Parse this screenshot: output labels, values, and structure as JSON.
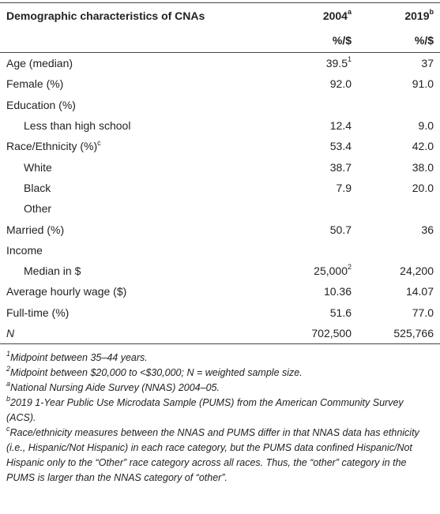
{
  "table": {
    "header": {
      "label": "Demographic characteristics of CNAs",
      "col2004": "2004",
      "col2004_note": "a",
      "col2019": "2019",
      "col2019_note": "b",
      "unit2004": "%/$",
      "unit2019": "%/$"
    },
    "rows": [
      {
        "label": "Age (median)",
        "v2004": "39.5",
        "v2004_note": "1",
        "v2019": "37"
      },
      {
        "label": "Female (%)",
        "v2004": "92.0",
        "v2019": "91.0"
      },
      {
        "label": "Education (%)"
      },
      {
        "label": "Less than high school",
        "v2004": "12.4",
        "v2019": "9.0"
      },
      {
        "label": "Race/Ethnicity (%)",
        "label_note": "c",
        "v2004": "53.4",
        "v2019": "42.0"
      },
      {
        "label": "White",
        "v2004": "38.7",
        "v2019": "38.0"
      },
      {
        "label": "Black",
        "v2004": "7.9",
        "v2019": "20.0"
      },
      {
        "label": "Other"
      },
      {
        "label": "Married (%)",
        "v2004": "50.7",
        "v2019": "36"
      },
      {
        "label": "Income"
      },
      {
        "label": "Median in $",
        "v2004": "25,000",
        "v2004_note": "2",
        "v2019": "24,200"
      },
      {
        "label": "Average hourly wage ($)",
        "v2004": "10.36",
        "v2019": "14.07"
      },
      {
        "label": "Full-time (%)",
        "v2004": "51.6",
        "v2019": "77.0"
      },
      {
        "label": "N",
        "v2004": "702,500",
        "v2019": "525,766"
      }
    ]
  },
  "footnotes": [
    {
      "marker": "1",
      "text": "Midpoint between 35–44 years."
    },
    {
      "marker": "2",
      "text": "Midpoint between $20,000 to <$30,000; N = weighted sample size."
    },
    {
      "marker": "a",
      "text": "National Nursing Aide Survey (NNAS) 2004–05."
    },
    {
      "marker": "b",
      "text": "2019 1-Year Public Use Microdata Sample (PUMS) from the American Community Survey (ACS)."
    },
    {
      "marker": "c",
      "text": "Race/ethnicity measures between the NNAS and PUMS differ in that NNAS data has ethnicity (i.e., Hispanic/Not Hispanic) in each race category, but the PUMS data confined Hispanic/Not Hispanic only to the “Other” race category across all races. Thus, the “other” category in the PUMS is larger than the NNAS category of “other”."
    }
  ]
}
